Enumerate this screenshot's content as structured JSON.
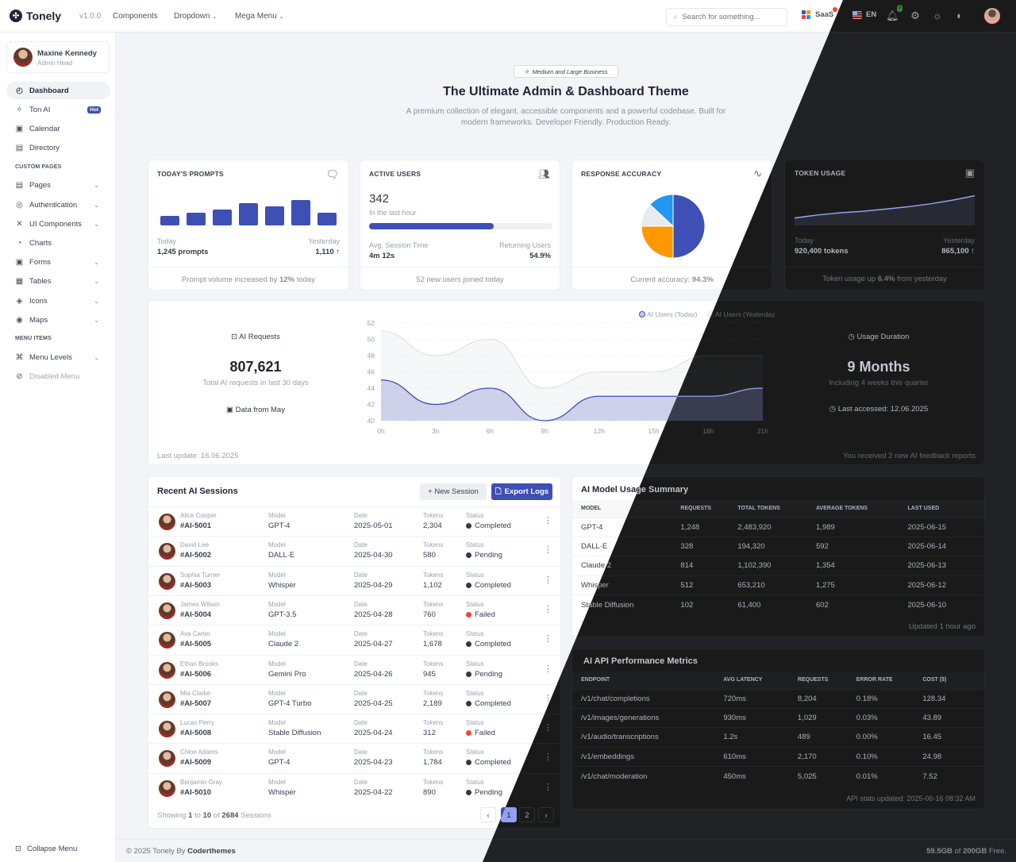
{
  "header": {
    "brand": "Tonely",
    "version": "v1.0.0",
    "nav": [
      "Components",
      "Dropdown",
      "Mega Menu"
    ],
    "search_placeholder": "Search for something...",
    "app_switch": "SaaS",
    "language": "EN",
    "notifications": "9"
  },
  "sidebar": {
    "user": {
      "name": "Maxine Kennedy",
      "role": "Admin Head"
    },
    "main": [
      {
        "label": "Dashboard",
        "icon": "dashboard-icon",
        "glyph": "◴",
        "active": true
      },
      {
        "label": "Ton AI",
        "icon": "sparkle-icon",
        "glyph": "✧",
        "badge": "Hot"
      },
      {
        "label": "Calendar",
        "icon": "calendar-icon",
        "glyph": "▣"
      },
      {
        "label": "Directory",
        "icon": "contacts-icon",
        "glyph": "▤"
      }
    ],
    "custom_title": "CUSTOM PAGES",
    "custom": [
      {
        "label": "Pages",
        "icon": "file-icon",
        "glyph": "▤",
        "chev": true
      },
      {
        "label": "Authentication",
        "icon": "fingerprint-icon",
        "glyph": "◎",
        "chev": true
      },
      {
        "label": "UI Components",
        "icon": "components-icon",
        "glyph": "✕",
        "chev": true
      },
      {
        "label": "Charts",
        "icon": "pie-chart-icon",
        "glyph": "◔"
      },
      {
        "label": "Forms",
        "icon": "form-icon",
        "glyph": "▣",
        "chev": true
      },
      {
        "label": "Tables",
        "icon": "table-icon",
        "glyph": "▦",
        "chev": true
      },
      {
        "label": "Icons",
        "icon": "layers-icon",
        "glyph": "◈",
        "chev": true
      },
      {
        "label": "Maps",
        "icon": "map-pin-icon",
        "glyph": "◉",
        "chev": true
      }
    ],
    "menu_title": "MENU ITEMS",
    "menu": [
      {
        "label": "Menu Levels",
        "icon": "command-icon",
        "glyph": "⌘",
        "chev": true
      },
      {
        "label": "Disabled Menu",
        "icon": "disabled-icon",
        "glyph": "⊘",
        "disabled": true
      }
    ],
    "collapse": "Collapse Menu"
  },
  "hero": {
    "badge": "Medium and Large Business",
    "title": "The Ultimate Admin & Dashboard Theme",
    "subtitle1": "A premium collection of elegant, accessible components and a powerful codebase. Built for",
    "subtitle2": "modern frameworks. Developer Friendly. Production Ready."
  },
  "cards": {
    "prompts": {
      "title": "TODAY'S PROMPTS",
      "bars": [
        3,
        4,
        5,
        7,
        6,
        8,
        4
      ],
      "today_label": "Today",
      "today_value": "1,245 prompts",
      "yest_label": "Yesterday",
      "yest_value": "1,110 ↑",
      "foot_pre": "Prompt volume increased by ",
      "foot_bold": "12%",
      "foot_post": " today"
    },
    "users": {
      "title": "ACTIVE USERS",
      "value": "342",
      "sub": "In the last hour",
      "progress": 0.68,
      "l_label": "Avg. Session Time",
      "l_value": "4m 12s",
      "r_label": "Returning Users",
      "r_value": "54.9%",
      "foot": "52 new users joined today"
    },
    "accuracy": {
      "title": "RESPONSE ACCURACY",
      "slices": [
        {
          "value": 50,
          "color": "#3e4fb5"
        },
        {
          "value": 25,
          "color": "#ff9800"
        },
        {
          "value": 12,
          "color": "#e9eaee"
        },
        {
          "value": 13,
          "color": "#2196f3"
        }
      ],
      "foot_pre": "Current accuracy: ",
      "foot_bold": "94.3%"
    },
    "tokens": {
      "title": "TOKEN USAGE",
      "trend": [
        10,
        14,
        17,
        19,
        22,
        25,
        29,
        34,
        40
      ],
      "today_label": "Today",
      "today_value": "920,400 tokens",
      "yest_label": "Yesterday",
      "yest_value": "865,100 ↑",
      "foot_pre": "Token usage up ",
      "foot_bold": "6.4%",
      "foot_post": " from yesterday"
    }
  },
  "requests": {
    "label": "AI Requests",
    "value": "807,621",
    "sub": "Total AI requests in last 30 days",
    "period": "Data from May",
    "updated": "Last update: 16.06.2025"
  },
  "duration": {
    "label": "Usage Duration",
    "value": "9 Months",
    "sub": "Including 4 weeks this quarter",
    "last": "Last accessed: 12.06.2025",
    "feedback": "You received 2 new AI feedback reports"
  },
  "chart_data": {
    "type": "area",
    "x": [
      "0h",
      "3h",
      "6h",
      "9h",
      "12h",
      "15h",
      "18h",
      "21h"
    ],
    "ylim": [
      40,
      52
    ],
    "yticks": [
      "40",
      "42",
      "44",
      "46",
      "48",
      "50",
      "52"
    ],
    "legend": "top-center",
    "grid": true,
    "series": [
      {
        "name": "AI Users (Today)",
        "values": [
          45,
          42,
          44,
          40,
          43,
          43,
          43,
          44
        ],
        "color": "#3e4fb5"
      },
      {
        "name": "AI Users (Yesterday)",
        "values": [
          51,
          48,
          50,
          44,
          46,
          46,
          48,
          48
        ],
        "color": "#e5e7eb"
      }
    ]
  },
  "sessions": {
    "title": "Recent AI Sessions",
    "new_btn": "+ New Session",
    "export_btn": "Export Logs",
    "labels": {
      "model": "Model",
      "date": "Date",
      "tokens": "Tokens",
      "status": "Status"
    },
    "rows": [
      {
        "name": "Alice Cooper",
        "id": "#AI-5001",
        "model": "GPT-4",
        "date": "2025-05-01",
        "tokens": "2,304",
        "status": "Completed"
      },
      {
        "name": "David Lee",
        "id": "#AI-5002",
        "model": "DALL·E",
        "date": "2025-04-30",
        "tokens": "580",
        "status": "Pending"
      },
      {
        "name": "Sophia Turner",
        "id": "#AI-5003",
        "model": "Whisper",
        "date": "2025-04-29",
        "tokens": "1,102",
        "status": "Completed"
      },
      {
        "name": "James Wilson",
        "id": "#AI-5004",
        "model": "GPT-3.5",
        "date": "2025-04-28",
        "tokens": "760",
        "status": "Failed"
      },
      {
        "name": "Ava Carter",
        "id": "#AI-5005",
        "model": "Claude 2",
        "date": "2025-04-27",
        "tokens": "1,678",
        "status": "Completed"
      },
      {
        "name": "Ethan Brooks",
        "id": "#AI-5006",
        "model": "Gemini Pro",
        "date": "2025-04-26",
        "tokens": "945",
        "status": "Pending"
      },
      {
        "name": "Mia Clarke",
        "id": "#AI-5007",
        "model": "GPT-4 Turbo",
        "date": "2025-04-25",
        "tokens": "2,189",
        "status": "Completed"
      },
      {
        "name": "Lucas Perry",
        "id": "#AI-5008",
        "model": "Stable Diffusion",
        "date": "2025-04-24",
        "tokens": "312",
        "status": "Failed"
      },
      {
        "name": "Chloe Adams",
        "id": "#AI-5009",
        "model": "GPT-4",
        "date": "2025-04-23",
        "tokens": "1,784",
        "status": "Completed"
      },
      {
        "name": "Benjamin Gray",
        "id": "#AI-5010",
        "model": "Whisper",
        "date": "2025-04-22",
        "tokens": "890",
        "status": "Pending"
      }
    ],
    "showing_pre": "Showing ",
    "from": "1",
    "to_word": " to ",
    "to": "10",
    "of_word": " of ",
    "total": "2684",
    "showing_post": " Sessions",
    "pages": [
      "1",
      "2"
    ],
    "current_page": "1"
  },
  "models": {
    "title": "AI Model Usage Summary",
    "headers": [
      "MODEL",
      "REQUESTS",
      "TOTAL TOKENS",
      "AVERAGE TOKENS",
      "LAST USED"
    ],
    "rows": [
      [
        "GPT-4",
        "1,248",
        "2,483,920",
        "1,989",
        "2025-06-15"
      ],
      [
        "DALL·E",
        "328",
        "194,320",
        "592",
        "2025-06-14"
      ],
      [
        "Claude 2",
        "814",
        "1,102,390",
        "1,354",
        "2025-06-13"
      ],
      [
        "Whisper",
        "512",
        "653,210",
        "1,275",
        "2025-06-12"
      ],
      [
        "Stable Diffusion",
        "102",
        "61,400",
        "602",
        "2025-06-10"
      ]
    ],
    "updated": "Updated 1 hour ago"
  },
  "api": {
    "title": "AI API Performance Metrics",
    "headers": [
      "ENDPOINT",
      "AVG LATENCY",
      "REQUESTS",
      "ERROR RATE",
      "COST ($)"
    ],
    "rows": [
      [
        "/v1/chat/completions",
        "720ms",
        "8,204",
        "0.18%",
        "128.34"
      ],
      [
        "/v1/images/generations",
        "930ms",
        "1,029",
        "0.03%",
        "43.89"
      ],
      [
        "/v1/audio/transcriptions",
        "1.2s",
        "489",
        "0.00%",
        "16.45"
      ],
      [
        "/v1/embeddings",
        "610ms",
        "2,170",
        "0.10%",
        "24.98"
      ],
      [
        "/v1/chat/moderation",
        "450ms",
        "5,025",
        "0.01%",
        "7.52"
      ]
    ],
    "updated": "API stats updated: 2025-06-16 08:32 AM"
  },
  "footer": {
    "copy": "© 2025 Tonely By ",
    "author": "Coderthemes",
    "storage_used": "59.5GB",
    "storage_of": " of ",
    "storage_total": "200GB",
    "storage_post": " Free."
  },
  "colors": {
    "primary": "#3e4fb5",
    "danger": "#f44336",
    "dark": "#313a46"
  }
}
